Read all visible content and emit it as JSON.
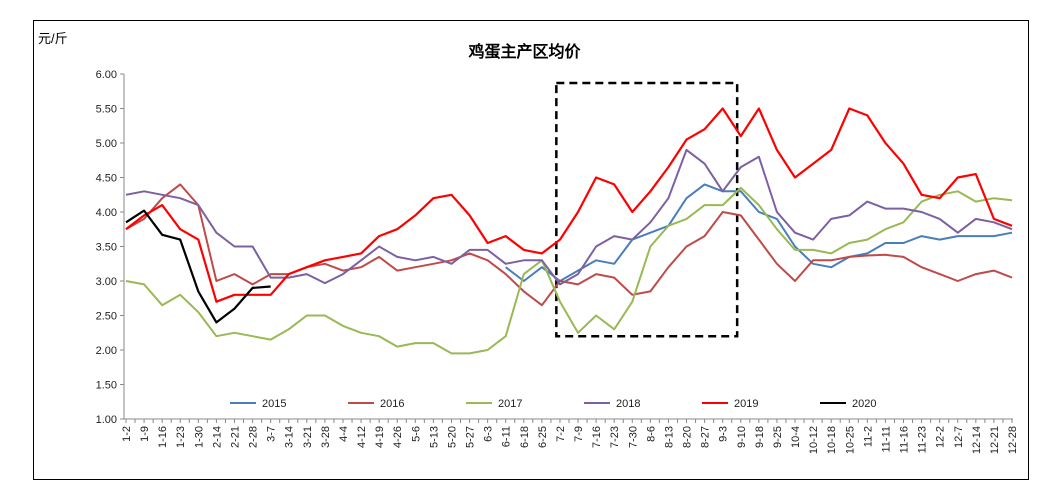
{
  "chart_data": {
    "type": "line",
    "title": "鸡蛋主产区均价",
    "ylabel": "元/斤",
    "xlabel": "",
    "ylim": [
      1.0,
      6.0
    ],
    "yticks": [
      "1.00",
      "1.50",
      "2.00",
      "2.50",
      "3.00",
      "3.50",
      "4.00",
      "4.50",
      "5.00",
      "5.50",
      "6.00"
    ],
    "grid": false,
    "legend_position": "bottom-inside",
    "categories": [
      "1-2",
      "1-9",
      "1-16",
      "1-23",
      "1-30",
      "2-14",
      "2-21",
      "2-28",
      "3-7",
      "3-14",
      "3-21",
      "3-28",
      "4-4",
      "4-12",
      "4-19",
      "4-26",
      "5-6",
      "5-13",
      "5-20",
      "5-27",
      "6-3",
      "6-11",
      "6-18",
      "6-25",
      "7-2",
      "7-9",
      "7-16",
      "7-23",
      "7-30",
      "8-6",
      "8-13",
      "8-20",
      "8-27",
      "9-3",
      "9-10",
      "9-18",
      "9-25",
      "10-4",
      "10-12",
      "10-18",
      "10-25",
      "11-2",
      "11-11",
      "11-16",
      "11-23",
      "12-2",
      "12-7",
      "12-14",
      "12-21",
      "12-28"
    ],
    "series": [
      {
        "name": "2015",
        "color": "#4a7ebb",
        "values": [
          null,
          null,
          null,
          null,
          null,
          null,
          null,
          null,
          null,
          null,
          null,
          null,
          null,
          null,
          null,
          null,
          null,
          null,
          null,
          null,
          null,
          3.2,
          3.0,
          3.2,
          3.0,
          3.15,
          3.3,
          3.25,
          3.6,
          3.7,
          3.8,
          4.2,
          4.4,
          4.3,
          4.3,
          4.0,
          3.9,
          3.5,
          3.25,
          3.2,
          3.35,
          3.4,
          3.55,
          3.55,
          3.65,
          3.6,
          3.65,
          3.65,
          3.65,
          3.7
        ]
      },
      {
        "name": "2016",
        "color": "#be4b48",
        "values": [
          3.75,
          3.9,
          4.2,
          4.4,
          4.1,
          3.0,
          3.1,
          2.95,
          3.1,
          3.1,
          3.2,
          3.25,
          3.15,
          3.2,
          3.35,
          3.15,
          3.2,
          3.25,
          3.3,
          3.4,
          3.3,
          3.1,
          2.85,
          2.65,
          3.0,
          2.95,
          3.1,
          3.05,
          2.8,
          2.85,
          3.2,
          3.5,
          3.65,
          4.0,
          3.95,
          3.6,
          3.25,
          3.0,
          3.3,
          3.3,
          3.35,
          3.37,
          3.38,
          3.35,
          3.2,
          3.1,
          3.0,
          3.1,
          3.15,
          3.05
        ]
      },
      {
        "name": "2017",
        "color": "#98b954",
        "values": [
          3.0,
          2.95,
          2.65,
          2.8,
          2.55,
          2.2,
          2.25,
          2.2,
          2.15,
          2.3,
          2.5,
          2.5,
          2.35,
          2.25,
          2.2,
          2.05,
          2.1,
          2.1,
          1.95,
          1.95,
          2.0,
          2.2,
          3.1,
          3.3,
          2.7,
          2.25,
          2.5,
          2.3,
          2.7,
          3.5,
          3.8,
          3.9,
          4.1,
          4.1,
          4.35,
          4.1,
          3.75,
          3.45,
          3.45,
          3.4,
          3.55,
          3.6,
          3.75,
          3.85,
          4.15,
          4.25,
          4.3,
          4.15,
          4.2,
          4.17
        ]
      },
      {
        "name": "2018",
        "color": "#7d60a0",
        "values": [
          4.25,
          4.3,
          4.25,
          4.2,
          4.1,
          3.7,
          3.5,
          3.5,
          3.05,
          3.05,
          3.1,
          2.97,
          3.1,
          3.3,
          3.5,
          3.35,
          3.3,
          3.35,
          3.25,
          3.45,
          3.45,
          3.25,
          3.3,
          3.3,
          2.95,
          3.1,
          3.5,
          3.65,
          3.6,
          3.85,
          4.2,
          4.9,
          4.7,
          4.3,
          4.65,
          4.8,
          4.0,
          3.7,
          3.6,
          3.9,
          3.95,
          4.15,
          4.05,
          4.05,
          4.0,
          3.9,
          3.7,
          3.9,
          3.85,
          3.75
        ]
      },
      {
        "name": "2019",
        "color": "#ff0000",
        "values": [
          3.75,
          3.95,
          4.1,
          3.75,
          3.6,
          2.7,
          2.8,
          2.8,
          2.8,
          3.1,
          3.2,
          3.3,
          3.35,
          3.4,
          3.65,
          3.75,
          3.95,
          4.2,
          4.25,
          3.95,
          3.55,
          3.65,
          3.45,
          3.4,
          3.6,
          4.0,
          4.5,
          4.4,
          4.0,
          4.3,
          4.65,
          5.05,
          5.2,
          5.5,
          5.1,
          5.5,
          4.9,
          4.5,
          4.7,
          4.9,
          5.5,
          5.4,
          5.0,
          4.7,
          4.25,
          4.2,
          4.5,
          4.55,
          3.9,
          3.8
        ]
      },
      {
        "name": "2020",
        "color": "#000000",
        "values": [
          3.85,
          4.02,
          3.67,
          3.6,
          2.85,
          2.4,
          2.6,
          2.9,
          2.92,
          null,
          null,
          null,
          null,
          null,
          null,
          null,
          null,
          null,
          null,
          null,
          null,
          null,
          null,
          null,
          null,
          null,
          null,
          null,
          null,
          null,
          null,
          null,
          null,
          null,
          null,
          null,
          null,
          null,
          null,
          null,
          null,
          null,
          null,
          null,
          null,
          null,
          null,
          null,
          null,
          null
        ]
      }
    ],
    "annotations": [
      {
        "type": "dashed-box",
        "x_from_index": 23.8,
        "x_to_index": 33.8,
        "y_from": 2.2,
        "y_to": 5.87
      }
    ]
  }
}
